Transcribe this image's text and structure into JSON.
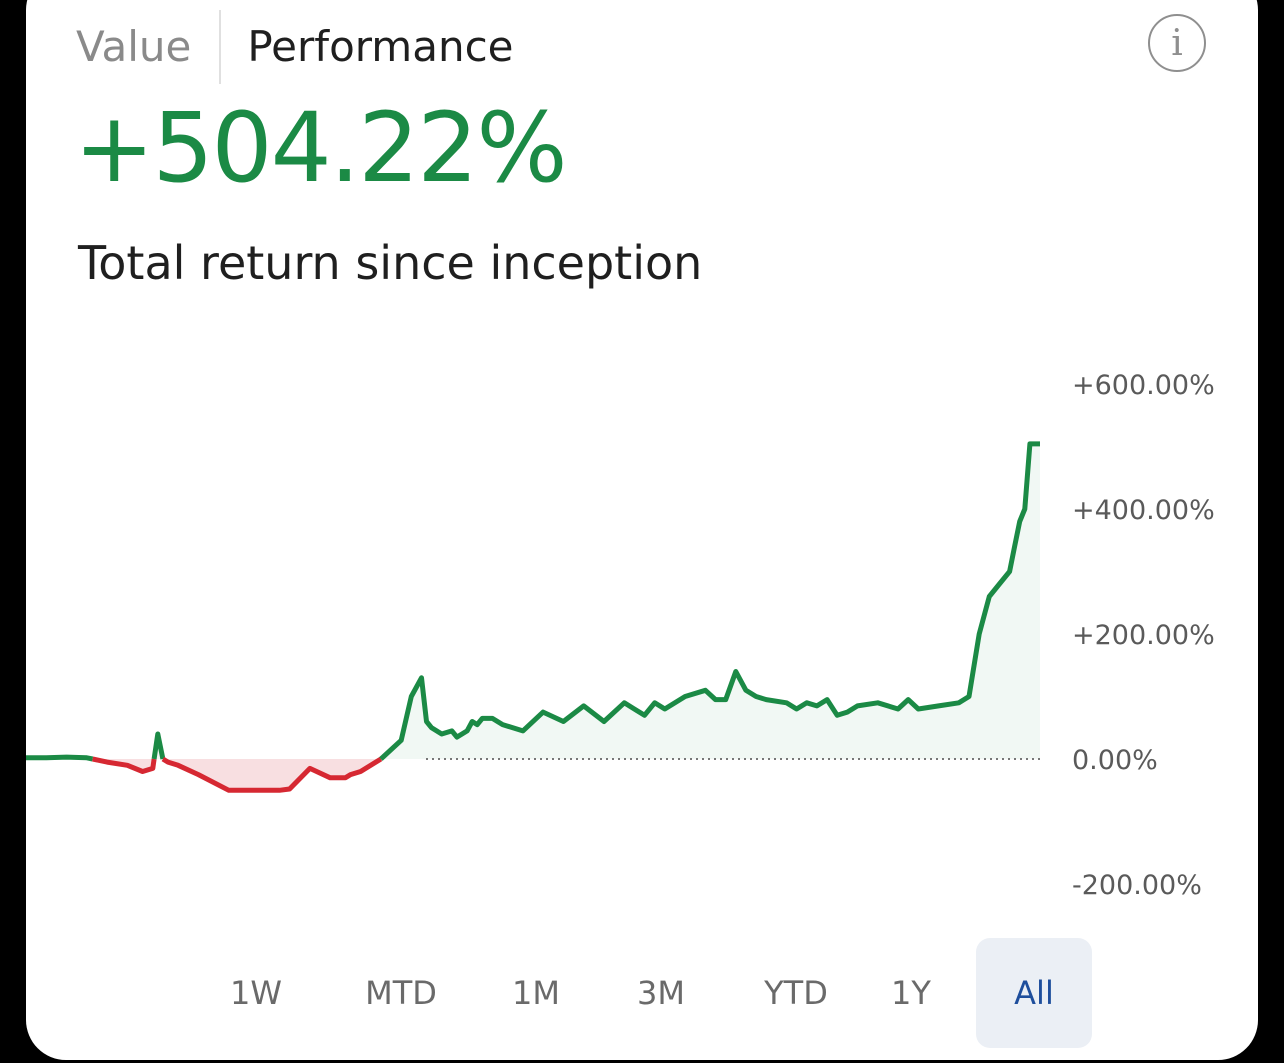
{
  "tabs": {
    "value_label": "Value",
    "performance_label": "Performance",
    "active": "Performance"
  },
  "info_icon": "info-icon",
  "headline": {
    "return": "+504.22%",
    "subtitle": "Total return since inception"
  },
  "colors": {
    "positive": "#1b8a45",
    "negative": "#d62832",
    "negative_fill": "#f8dfe1",
    "positive_fill": "#f1f8f4",
    "selected_bg": "#ebeff5",
    "selected_text": "#1e4e9c"
  },
  "ranges": {
    "items": [
      "1W",
      "MTD",
      "1M",
      "3M",
      "YTD",
      "1Y",
      "All"
    ],
    "selected": "All"
  },
  "chart_data": {
    "type": "line",
    "title": "",
    "xlabel": "",
    "ylabel": "",
    "ylim": [
      -200,
      600
    ],
    "y_ticks": [
      600,
      400,
      200,
      0,
      -200
    ],
    "y_tick_labels": [
      "+600.00%",
      "+400.00%",
      "+200.00%",
      "0.00%",
      "-200.00%"
    ],
    "baseline": 0,
    "baseline_style": "dotted",
    "grid": false,
    "series": [
      {
        "x_fraction": [
          0,
          0.02,
          0.04,
          0.06,
          0.08,
          0.1,
          0.115,
          0.125,
          0.13,
          0.135,
          0.14,
          0.15,
          0.17,
          0.2,
          0.22,
          0.24,
          0.25,
          0.26,
          0.28,
          0.3,
          0.315,
          0.32,
          0.33,
          0.35,
          0.37,
          0.38,
          0.39,
          0.395,
          0.4,
          0.41,
          0.42,
          0.425,
          0.43,
          0.435,
          0.44,
          0.445,
          0.45,
          0.46,
          0.47,
          0.49,
          0.51,
          0.53,
          0.55,
          0.57,
          0.59,
          0.61,
          0.62,
          0.63,
          0.65,
          0.67,
          0.68,
          0.69,
          0.7,
          0.71,
          0.72,
          0.73,
          0.75,
          0.76,
          0.77,
          0.78,
          0.79,
          0.8,
          0.81,
          0.82,
          0.84,
          0.86,
          0.87,
          0.88,
          0.9,
          0.92,
          0.93,
          0.94,
          0.95,
          0.96,
          0.97,
          0.975,
          0.98,
          0.985,
          0.99,
          0.995,
          1.0
        ],
        "y": [
          2,
          2,
          3,
          2,
          -5,
          -10,
          -20,
          -15,
          40,
          0,
          -5,
          -10,
          -25,
          -50,
          -50,
          -50,
          -50,
          -48,
          -15,
          -30,
          -30,
          -25,
          -20,
          0,
          30,
          100,
          130,
          60,
          50,
          40,
          45,
          35,
          40,
          45,
          60,
          55,
          65,
          65,
          55,
          45,
          75,
          60,
          85,
          60,
          90,
          70,
          90,
          80,
          100,
          110,
          95,
          95,
          140,
          110,
          100,
          95,
          90,
          80,
          90,
          85,
          95,
          70,
          75,
          85,
          90,
          80,
          95,
          80,
          85,
          90,
          100,
          200,
          260,
          280,
          300,
          340,
          380,
          400,
          504.22,
          504.22,
          504.22
        ]
      }
    ]
  }
}
